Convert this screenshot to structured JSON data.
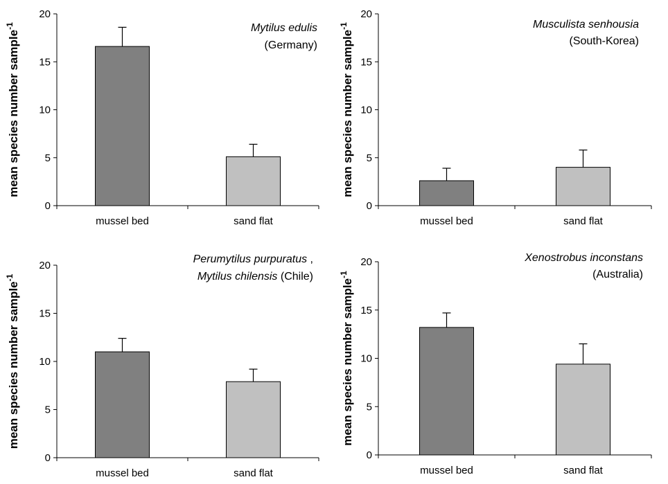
{
  "chart_data": [
    {
      "type": "bar",
      "categories": [
        "mussel bed",
        "sand flat"
      ],
      "values": [
        16.6,
        5.1
      ],
      "errors": [
        2.0,
        1.3
      ],
      "ylabel": "mean species number sample",
      "ylabel_superscript": "-1",
      "ylim": [
        0,
        20
      ],
      "yticks": [
        "0",
        "5",
        "10",
        "15",
        "20"
      ],
      "bar_colors": [
        "#808080",
        "#c0c0c0"
      ],
      "annotation": [
        [
          {
            "text": "Mytilus edulis",
            "italic": true
          }
        ],
        [
          {
            "text": "(Germany)",
            "italic": false
          }
        ]
      ],
      "grid": false
    },
    {
      "type": "bar",
      "categories": [
        "mussel bed",
        "sand flat"
      ],
      "values": [
        2.6,
        4.0
      ],
      "errors": [
        1.3,
        1.8
      ],
      "ylabel": "mean species number sample",
      "ylabel_superscript": "-1",
      "ylim": [
        0,
        20
      ],
      "yticks": [
        "0",
        "5",
        "10",
        "15",
        "20"
      ],
      "bar_colors": [
        "#808080",
        "#c0c0c0"
      ],
      "annotation": [
        [
          {
            "text": "Musculista senhousia",
            "italic": true
          }
        ],
        [
          {
            "text": "(South-Korea)",
            "italic": false
          }
        ]
      ],
      "grid": false
    },
    {
      "type": "bar",
      "categories": [
        "mussel bed",
        "sand flat"
      ],
      "values": [
        11.0,
        7.9
      ],
      "errors": [
        1.4,
        1.3
      ],
      "ylabel": "mean species number sample",
      "ylabel_superscript": "-1",
      "ylim": [
        0,
        20
      ],
      "yticks": [
        "0",
        "5",
        "10",
        "15",
        "20"
      ],
      "bar_colors": [
        "#808080",
        "#c0c0c0"
      ],
      "annotation": [
        [
          {
            "text": "Perumytilus purpuratus",
            "italic": true
          },
          {
            "text": " ,",
            "italic": false
          }
        ],
        [
          {
            "text": "Mytilus chilensis",
            "italic": true
          },
          {
            "text": "  (Chile)",
            "italic": false
          }
        ]
      ],
      "grid": false
    },
    {
      "type": "bar",
      "categories": [
        "mussel bed",
        "sand flat"
      ],
      "values": [
        13.2,
        9.4
      ],
      "errors": [
        1.5,
        2.1
      ],
      "ylabel": "mean species number sample",
      "ylabel_superscript": "-1",
      "ylim": [
        0,
        20
      ],
      "yticks": [
        "0",
        "5",
        "10",
        "15",
        "20"
      ],
      "bar_colors": [
        "#808080",
        "#c0c0c0"
      ],
      "annotation": [
        [
          {
            "text": "Xenostrobus inconstans",
            "italic": true
          }
        ],
        [
          {
            "text": "(Australia)",
            "italic": false
          }
        ]
      ],
      "grid": false
    }
  ]
}
